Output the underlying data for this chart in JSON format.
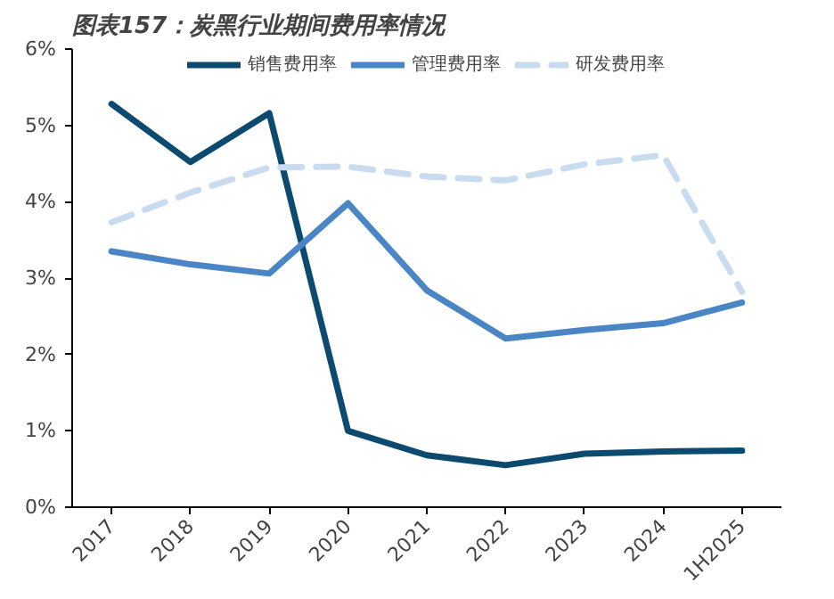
{
  "chart_data": {
    "type": "line",
    "title": "图表157：炭黑行业期间费用率情况",
    "categories": [
      "2017",
      "2018",
      "2019",
      "2020",
      "2021",
      "2022",
      "2023",
      "2024",
      "1H2025"
    ],
    "series": [
      {
        "name": "销售费用率",
        "color": "#0d4a70",
        "values": [
          5.28,
          4.52,
          5.16,
          1.0,
          0.68,
          0.55,
          0.7,
          0.73,
          0.74
        ]
      },
      {
        "name": "管理费用率",
        "color": "#4a86c5",
        "values": [
          3.35,
          3.18,
          3.06,
          3.98,
          2.84,
          2.21,
          2.32,
          2.41,
          2.68
        ]
      },
      {
        "name": "研发费用率",
        "color": "#c9dcef",
        "line_style": "dashed",
        "values": [
          3.73,
          4.12,
          4.45,
          4.46,
          4.33,
          4.28,
          4.49,
          4.61,
          2.82
        ]
      }
    ],
    "ylim": [
      0,
      6
    ],
    "yticks": [
      {
        "value": 0,
        "label": "0%"
      },
      {
        "value": 1,
        "label": "1%"
      },
      {
        "value": 2,
        "label": "2%"
      },
      {
        "value": 3,
        "label": "3%"
      },
      {
        "value": 4,
        "label": "4%"
      },
      {
        "value": 5,
        "label": "5%"
      },
      {
        "value": 6,
        "label": "6%"
      }
    ],
    "grid": false,
    "legend": "top"
  }
}
